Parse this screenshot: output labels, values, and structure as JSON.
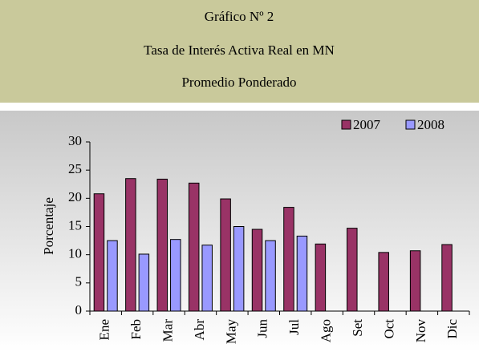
{
  "chart_data": {
    "type": "bar",
    "title_lines": [
      "Gráfico Nº 2",
      "Tasa de Interés Activa Real en MN",
      "Promedio Ponderado"
    ],
    "y_label": "Porcentaje",
    "categories": [
      "Ene",
      "Feb",
      "Mar",
      "Abr",
      "May",
      "Jun",
      "Jul",
      "Ago",
      "Set",
      "Oct",
      "Nov",
      "Dic"
    ],
    "series": [
      {
        "name": "2007",
        "color": "#993366",
        "values": [
          20.8,
          23.5,
          23.4,
          22.7,
          19.9,
          14.5,
          18.4,
          11.9,
          14.7,
          10.4,
          10.7,
          11.8
        ]
      },
      {
        "name": "2008",
        "color": "#9999ff",
        "values": [
          12.5,
          10.1,
          12.7,
          11.7,
          15.0,
          12.5,
          13.3,
          null,
          null,
          null,
          null,
          null
        ]
      }
    ],
    "ylim": [
      0,
      30
    ],
    "yticks": [
      0,
      5,
      10,
      15,
      20,
      25,
      30
    ],
    "grid": false,
    "legend": "top-right"
  }
}
